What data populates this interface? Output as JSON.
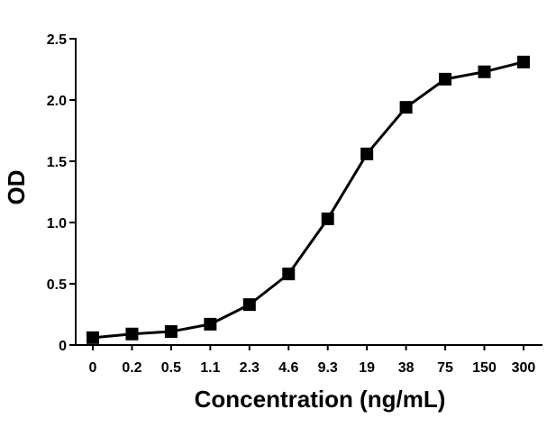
{
  "chart_data": {
    "type": "line",
    "title": "",
    "xlabel": "Concentration (ng/mL)",
    "ylabel": "OD",
    "categories": [
      "0",
      "0.2",
      "0.5",
      "1.1",
      "2.3",
      "4.6",
      "9.3",
      "19",
      "38",
      "75",
      "150",
      "300"
    ],
    "series": [
      {
        "values": [
          0.06,
          0.09,
          0.11,
          0.17,
          0.33,
          0.58,
          1.03,
          1.56,
          1.94,
          2.17,
          2.23,
          2.31
        ]
      }
    ],
    "ylim": [
      0,
      2.5
    ],
    "yticks": [
      "0",
      "0.5",
      "1.0",
      "1.5",
      "2.0",
      "2.5"
    ],
    "marker": "square",
    "line_color": "#000000",
    "grid": false,
    "legend": "none"
  }
}
